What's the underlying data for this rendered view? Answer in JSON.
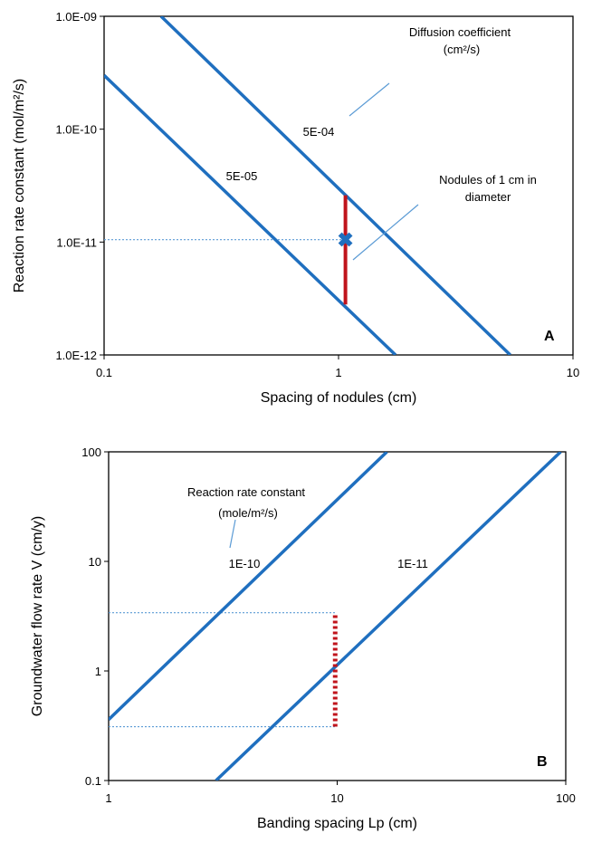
{
  "colors": {
    "line": "#1f6fbf",
    "guide": "#5b9bd5",
    "highlight": "#c0141c",
    "frame": "#000000"
  },
  "chart_data": [
    {
      "panel": "A",
      "type": "line",
      "xscale": "log",
      "yscale": "log",
      "xlim": [
        0.1,
        10
      ],
      "ylim": [
        1e-12,
        1e-09
      ],
      "xlabel": "Spacing of nodules (cm)",
      "ylabel": "Reaction rate constant (mol/m²/s)",
      "xticks": [
        {
          "v": 0.1,
          "label": "0.1"
        },
        {
          "v": 1,
          "label": "1"
        },
        {
          "v": 10,
          "label": "10"
        }
      ],
      "yticks": [
        {
          "v": 1e-12,
          "label": "1.0E-12"
        },
        {
          "v": 1e-11,
          "label": "1.0E-11"
        },
        {
          "v": 1e-10,
          "label": "1.0E-10"
        },
        {
          "v": 1e-09,
          "label": "1.0E-09"
        }
      ],
      "series": [
        {
          "name": "5E-04",
          "x": [
            0.175,
            5.4
          ],
          "y": [
            1e-09,
            1e-12
          ]
        },
        {
          "name": "5E-05",
          "x": [
            0.1,
            1.75
          ],
          "y": [
            3e-10,
            1e-12
          ]
        }
      ],
      "range_bar": {
        "x": 1.07,
        "y": [
          2.8e-12,
          2.6e-11
        ]
      },
      "marker": {
        "x": 1.07,
        "y": 1.05e-11,
        "symbol": "✖"
      },
      "guide_line": {
        "x": [
          0.1,
          1.07
        ],
        "y": 1.05e-11
      },
      "annotations": {
        "diffusion_title": "Diffusion coefficient",
        "diffusion_unit": "(cm²/s)",
        "nodules_line1": "Nodules of 1 cm in",
        "nodules_line2": "diameter"
      }
    },
    {
      "panel": "B",
      "type": "line",
      "xscale": "log",
      "yscale": "log",
      "xlim": [
        1,
        100
      ],
      "ylim": [
        0.1,
        100
      ],
      "xlabel": "Banding spacing Lp (cm)",
      "ylabel": "Groundwater flow rate V (cm/y)",
      "xticks": [
        {
          "v": 1,
          "label": "1"
        },
        {
          "v": 10,
          "label": "10"
        },
        {
          "v": 100,
          "label": "100"
        }
      ],
      "yticks": [
        {
          "v": 0.1,
          "label": "0.1"
        },
        {
          "v": 1,
          "label": "1"
        },
        {
          "v": 10,
          "label": "10"
        },
        {
          "v": 100,
          "label": "100"
        }
      ],
      "series": [
        {
          "name": "1E-10",
          "x": [
            1,
            16.5
          ],
          "y": [
            0.36,
            100
          ]
        },
        {
          "name": "1E-11",
          "x": [
            2.95,
            95
          ],
          "y": [
            0.1,
            100
          ]
        }
      ],
      "range_bar": {
        "x": 9.8,
        "y": [
          0.31,
          3.4
        ]
      },
      "guide_lines": [
        {
          "x": [
            1,
            9.8
          ],
          "y": 3.4
        },
        {
          "x": [
            1,
            9.8
          ],
          "y": 0.31
        }
      ],
      "annotations": {
        "rate_title": "Reaction rate constant",
        "rate_unit": "(mole/m²/s)"
      }
    }
  ]
}
